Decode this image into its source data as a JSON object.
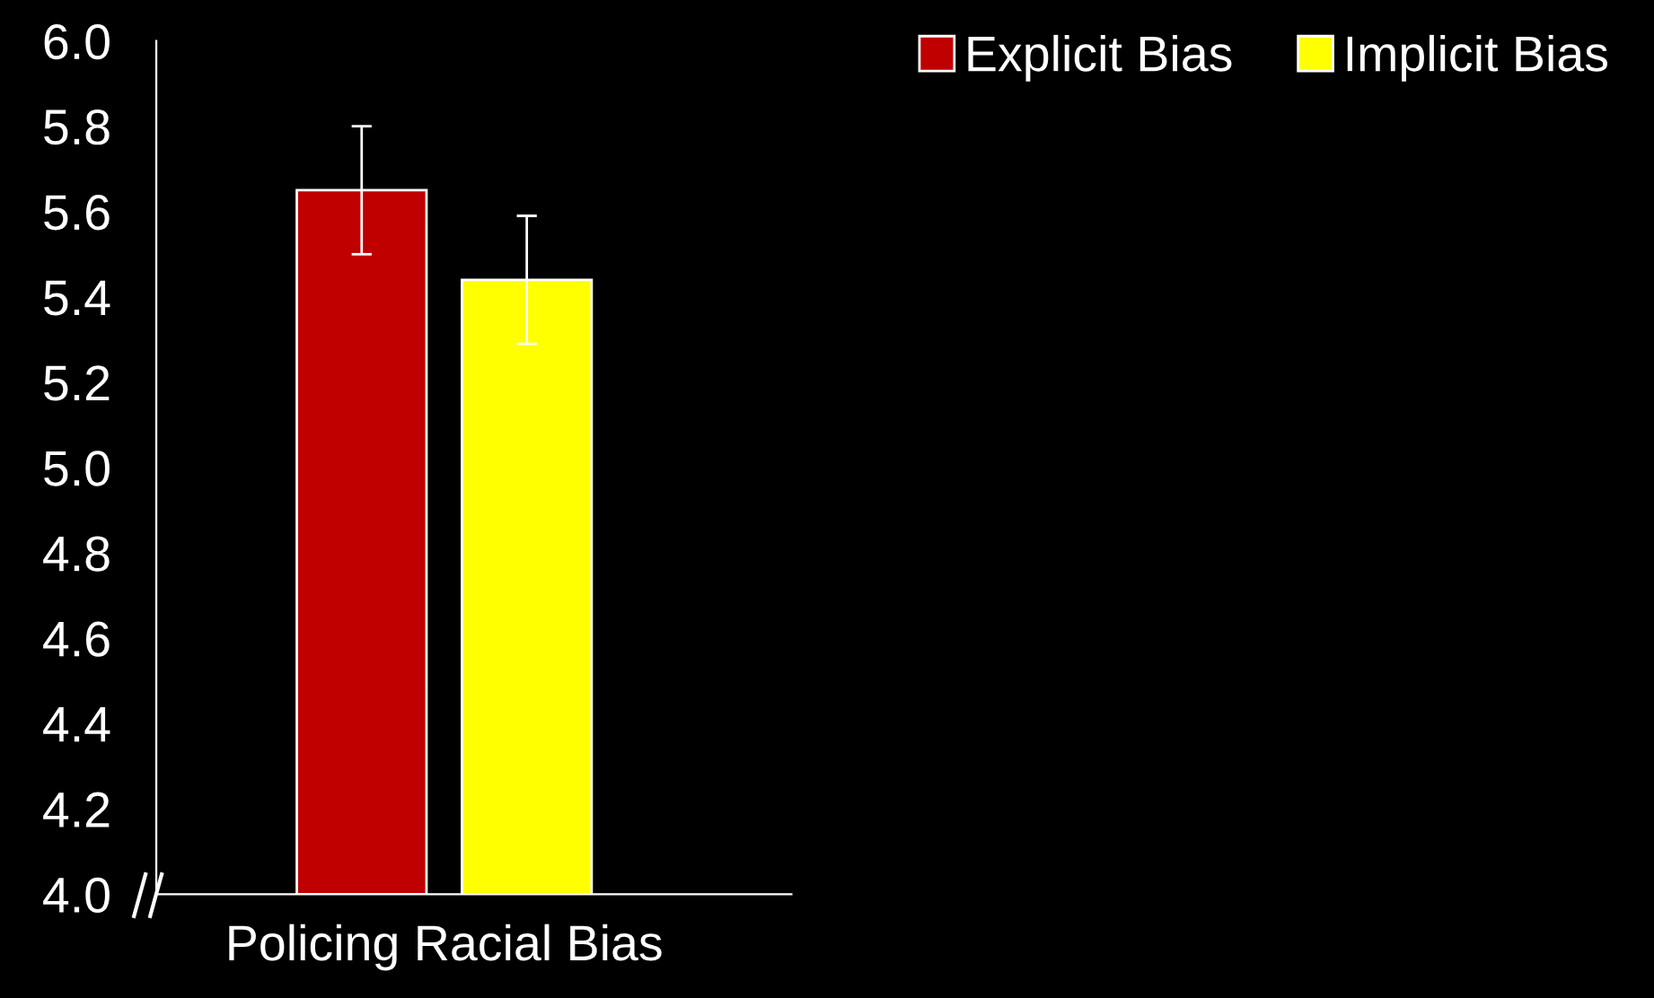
{
  "chart_data": {
    "type": "bar",
    "categories": [
      "Policing Racial Bias"
    ],
    "series": [
      {
        "name": "Explicit Bias",
        "color": "#c00000",
        "values": [
          5.65
        ],
        "errors": [
          0.15
        ]
      },
      {
        "name": "Implicit Bias",
        "color": "#ffff00",
        "values": [
          5.44
        ],
        "errors": [
          0.15
        ]
      }
    ],
    "ylim": [
      4.0,
      6.0
    ],
    "yticks": [
      {
        "value": 4.0,
        "label": "4.0"
      },
      {
        "value": 4.2,
        "label": "4.2"
      },
      {
        "value": 4.4,
        "label": "4.4"
      },
      {
        "value": 4.6,
        "label": "4.6"
      },
      {
        "value": 4.8,
        "label": "4.8"
      },
      {
        "value": 5.0,
        "label": "5.0"
      },
      {
        "value": 5.2,
        "label": "5.2"
      },
      {
        "value": 5.4,
        "label": "5.4"
      },
      {
        "value": 5.6,
        "label": "5.6"
      },
      {
        "value": 5.8,
        "label": "5.8"
      },
      {
        "value": 6.0,
        "label": "6.0"
      }
    ],
    "legend": "top right",
    "grid": false
  }
}
